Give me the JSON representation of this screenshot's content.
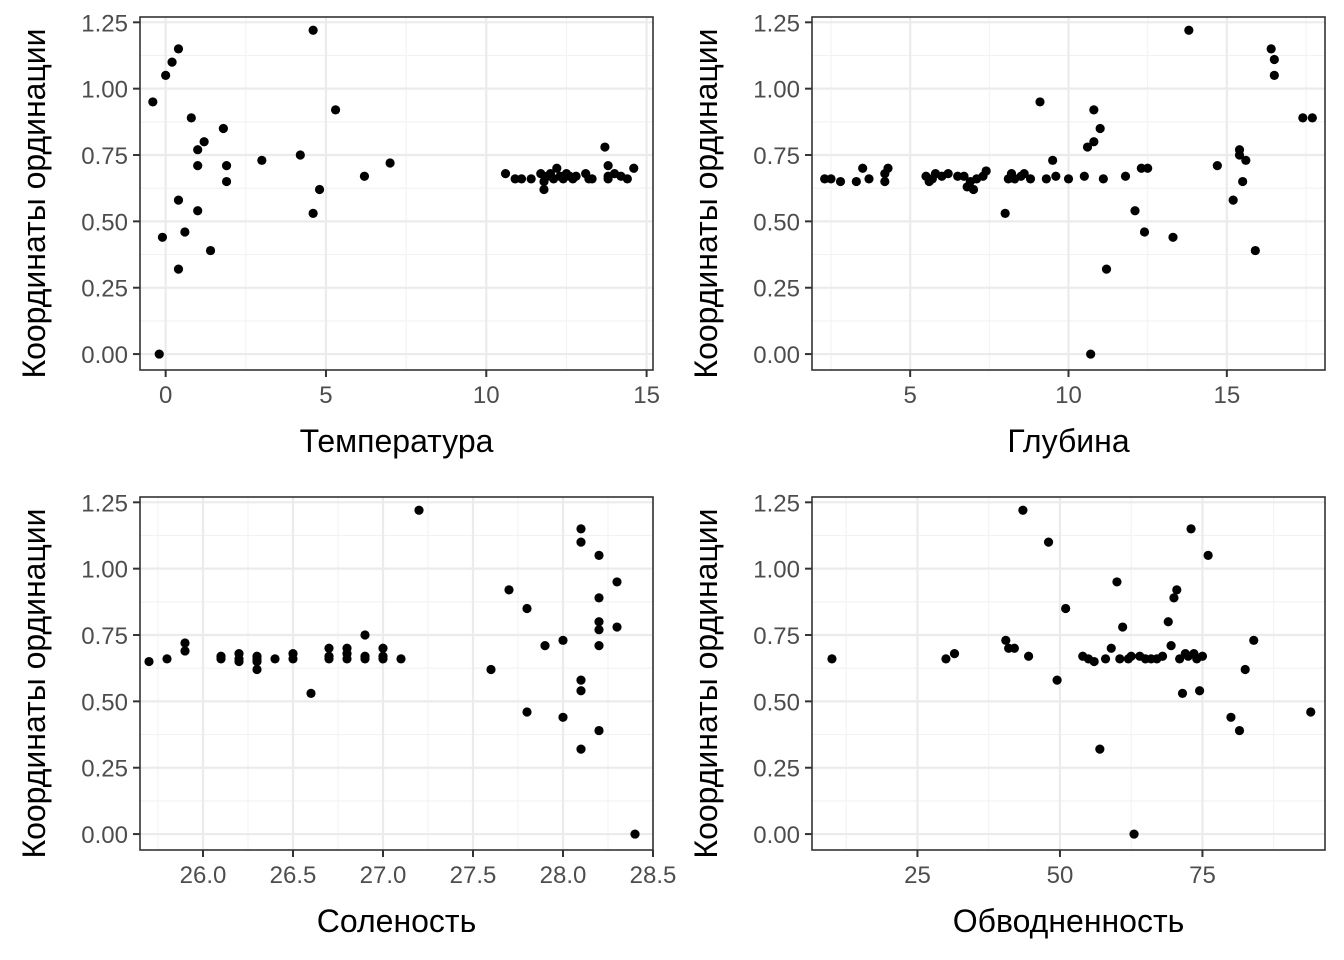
{
  "chart_data": [
    {
      "type": "scatter",
      "xlabel": "Температура",
      "ylabel": "Координаты ординации",
      "xlim": [
        -0.8,
        15.2
      ],
      "ylim": [
        -0.06,
        1.27
      ],
      "xticks": [
        0,
        5,
        10,
        15
      ],
      "xtick_labels": [
        "0",
        "5",
        "10",
        "15"
      ],
      "yticks": [
        0,
        0.25,
        0.5,
        0.75,
        1.0,
        1.25
      ],
      "ytick_labels": [
        "0.00",
        "0.25",
        "0.50",
        "0.75",
        "1.00",
        "1.25"
      ],
      "grid": true,
      "x": [
        -0.4,
        -0.2,
        -0.1,
        0.0,
        0.2,
        0.4,
        0.4,
        0.4,
        0.6,
        0.8,
        1.0,
        1.0,
        1.0,
        1.2,
        1.4,
        1.8,
        1.9,
        1.9,
        3.0,
        4.2,
        4.6,
        4.6,
        4.8,
        5.3,
        6.2,
        7.0,
        10.6,
        10.9,
        11.1,
        11.4,
        11.7,
        11.8,
        11.8,
        11.9,
        12.0,
        12.1,
        12.2,
        12.3,
        12.4,
        12.5,
        12.6,
        12.7,
        12.8,
        13.1,
        13.2,
        13.3,
        13.7,
        13.8,
        13.8,
        13.8,
        14.0,
        14.2,
        14.4,
        14.6
      ],
      "y": [
        0.95,
        0.0,
        0.44,
        1.05,
        1.1,
        1.15,
        0.58,
        0.32,
        0.46,
        0.89,
        0.77,
        0.71,
        0.54,
        0.8,
        0.39,
        0.85,
        0.71,
        0.65,
        0.73,
        0.75,
        1.22,
        0.53,
        0.62,
        0.92,
        0.67,
        0.72,
        0.68,
        0.66,
        0.66,
        0.66,
        0.68,
        0.65,
        0.62,
        0.67,
        0.68,
        0.66,
        0.7,
        0.67,
        0.66,
        0.68,
        0.67,
        0.66,
        0.67,
        0.68,
        0.66,
        0.66,
        0.78,
        0.71,
        0.67,
        0.66,
        0.68,
        0.67,
        0.66,
        0.7
      ]
    },
    {
      "type": "scatter",
      "xlabel": "Глубина",
      "ylabel": "Координаты ординации",
      "xlim": [
        1.9,
        18.1
      ],
      "ylim": [
        -0.06,
        1.27
      ],
      "xticks": [
        5,
        10,
        15
      ],
      "xtick_labels": [
        "5",
        "10",
        "15"
      ],
      "yticks": [
        0,
        0.25,
        0.5,
        0.75,
        1.0,
        1.25
      ],
      "ytick_labels": [
        "0.00",
        "0.25",
        "0.50",
        "0.75",
        "1.00",
        "1.25"
      ],
      "grid": true,
      "x": [
        2.3,
        2.5,
        2.8,
        3.3,
        3.5,
        3.7,
        4.2,
        4.2,
        4.3,
        5.5,
        5.6,
        5.7,
        5.8,
        6.0,
        6.2,
        6.5,
        6.7,
        6.8,
        6.9,
        7.0,
        7.1,
        7.3,
        7.4,
        8.0,
        8.1,
        8.2,
        8.3,
        8.5,
        8.6,
        8.8,
        9.1,
        9.3,
        9.5,
        9.6,
        10.0,
        10.5,
        10.8,
        10.6,
        10.7,
        10.8,
        11.0,
        11.1,
        11.2,
        11.8,
        12.1,
        12.3,
        12.4,
        12.5,
        13.3,
        13.8,
        14.7,
        15.2,
        15.4,
        15.4,
        15.5,
        15.6,
        15.9,
        16.4,
        16.5,
        16.5,
        17.4,
        17.7
      ],
      "y": [
        0.66,
        0.66,
        0.65,
        0.65,
        0.7,
        0.66,
        0.65,
        0.68,
        0.7,
        0.67,
        0.65,
        0.66,
        0.68,
        0.67,
        0.68,
        0.67,
        0.67,
        0.63,
        0.65,
        0.62,
        0.66,
        0.67,
        0.69,
        0.53,
        0.66,
        0.68,
        0.66,
        0.67,
        0.68,
        0.66,
        0.95,
        0.66,
        0.73,
        0.67,
        0.66,
        0.67,
        0.92,
        0.78,
        0.0,
        0.8,
        0.85,
        0.66,
        0.32,
        0.67,
        0.54,
        0.7,
        0.46,
        0.7,
        0.44,
        1.22,
        0.71,
        0.58,
        0.77,
        0.75,
        0.65,
        0.73,
        0.39,
        1.15,
        1.11,
        1.05,
        0.89,
        0.89
      ]
    },
    {
      "type": "scatter",
      "xlabel": "Соленость",
      "ylabel": "Координаты ординации",
      "xlim": [
        25.65,
        28.5
      ],
      "ylim": [
        -0.06,
        1.27
      ],
      "xticks": [
        26.0,
        26.5,
        27.0,
        27.5,
        28.0,
        28.5
      ],
      "xtick_labels": [
        "26.0",
        "26.5",
        "27.0",
        "27.5",
        "28.0",
        "28.5"
      ],
      "yticks": [
        0,
        0.25,
        0.5,
        0.75,
        1.0,
        1.25
      ],
      "ytick_labels": [
        "0.00",
        "0.25",
        "0.50",
        "0.75",
        "1.00",
        "1.25"
      ],
      "grid": true,
      "x": [
        25.7,
        25.8,
        25.9,
        25.9,
        26.1,
        26.1,
        26.2,
        26.2,
        26.2,
        26.3,
        26.3,
        26.3,
        26.3,
        26.4,
        26.5,
        26.5,
        26.6,
        26.7,
        26.7,
        26.7,
        26.8,
        26.8,
        26.8,
        26.9,
        26.9,
        26.9,
        27.0,
        27.0,
        27.0,
        27.1,
        27.2,
        27.6,
        27.7,
        27.8,
        27.8,
        27.9,
        28.0,
        28.0,
        28.1,
        28.1,
        28.1,
        28.1,
        28.1,
        28.2,
        28.2,
        28.2,
        28.2,
        28.2,
        28.2,
        28.3,
        28.3,
        28.4
      ],
      "y": [
        0.65,
        0.66,
        0.72,
        0.69,
        0.67,
        0.66,
        0.68,
        0.66,
        0.65,
        0.67,
        0.66,
        0.62,
        0.65,
        0.66,
        0.68,
        0.66,
        0.53,
        0.7,
        0.67,
        0.66,
        0.7,
        0.68,
        0.66,
        0.75,
        0.67,
        0.66,
        0.7,
        0.67,
        0.66,
        0.66,
        1.22,
        0.62,
        0.92,
        0.85,
        0.46,
        0.71,
        0.73,
        0.44,
        1.15,
        1.1,
        0.58,
        0.54,
        0.32,
        1.05,
        0.89,
        0.8,
        0.77,
        0.71,
        0.39,
        0.95,
        0.78,
        0.0
      ]
    },
    {
      "type": "scatter",
      "xlabel": "Обводненность",
      "ylabel": "Координаты ординации",
      "xlim": [
        6.5,
        96.5
      ],
      "ylim": [
        -0.06,
        1.27
      ],
      "xticks": [
        25,
        50,
        75
      ],
      "xtick_labels": [
        "25",
        "50",
        "75"
      ],
      "yticks": [
        0,
        0.25,
        0.5,
        0.75,
        1.0,
        1.25
      ],
      "ytick_labels": [
        "0.00",
        "0.25",
        "0.50",
        "0.75",
        "1.00",
        "1.25"
      ],
      "grid": true,
      "x": [
        10,
        30,
        31.5,
        40.5,
        41,
        42,
        43.5,
        44.5,
        48,
        49.5,
        51,
        54,
        55,
        56,
        57,
        58,
        59,
        60,
        60.5,
        61,
        62,
        62.5,
        63,
        64,
        65,
        66,
        67,
        68,
        69,
        69.5,
        70,
        70.5,
        71,
        71.5,
        72,
        72.5,
        73,
        73.5,
        74,
        74.5,
        75,
        76,
        80,
        81.5,
        82.5,
        84,
        94
      ],
      "y": [
        0.66,
        0.66,
        0.68,
        0.73,
        0.7,
        0.7,
        1.22,
        0.67,
        1.1,
        0.58,
        0.85,
        0.67,
        0.66,
        0.65,
        0.32,
        0.66,
        0.7,
        0.95,
        0.66,
        0.78,
        0.66,
        0.67,
        0.0,
        0.67,
        0.66,
        0.66,
        0.66,
        0.67,
        0.8,
        0.71,
        0.89,
        0.92,
        0.66,
        0.53,
        0.68,
        0.67,
        1.15,
        0.68,
        0.66,
        0.54,
        0.67,
        1.05,
        0.44,
        0.39,
        0.62,
        0.73,
        0.46
      ]
    }
  ]
}
